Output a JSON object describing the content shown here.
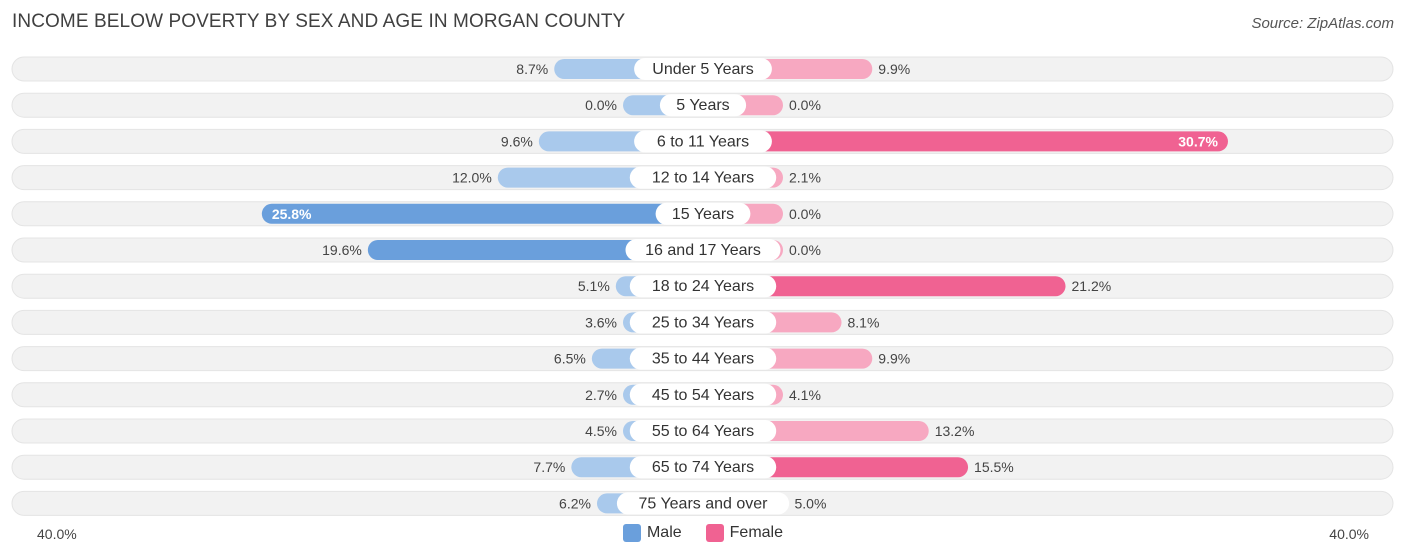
{
  "header": {
    "title": "INCOME BELOW POVERTY BY SEX AND AGE IN MORGAN COUNTY",
    "source": "Source: ZipAtlas.com"
  },
  "axis": {
    "left_label": "40.0%",
    "right_label": "40.0%"
  },
  "legend": {
    "male_label": "Male",
    "female_label": "Female"
  },
  "colors": {
    "male": "#6a9fdc",
    "male_light": "#a9c9ec",
    "female": "#f06292",
    "female_light": "#f7a8c1",
    "row_bg": "#f2f2f2"
  },
  "chart_data": {
    "type": "bar",
    "title": "INCOME BELOW POVERTY BY SEX AND AGE IN MORGAN COUNTY",
    "orientation": "horizontal-diverging",
    "xlim": [
      -40,
      40
    ],
    "categories": [
      "Under 5 Years",
      "5 Years",
      "6 to 11 Years",
      "12 to 14 Years",
      "15 Years",
      "16 and 17 Years",
      "18 to 24 Years",
      "25 to 34 Years",
      "35 to 44 Years",
      "45 to 54 Years",
      "55 to 64 Years",
      "65 to 74 Years",
      "75 Years and over"
    ],
    "series": [
      {
        "name": "Male",
        "values": [
          8.7,
          0.0,
          9.6,
          12.0,
          25.8,
          19.6,
          5.1,
          3.6,
          6.5,
          2.7,
          4.5,
          7.7,
          6.2
        ],
        "labels": [
          "8.7%",
          "0.0%",
          "9.6%",
          "12.0%",
          "25.8%",
          "19.6%",
          "5.1%",
          "3.6%",
          "6.5%",
          "2.7%",
          "4.5%",
          "7.7%",
          "6.2%"
        ]
      },
      {
        "name": "Female",
        "values": [
          9.9,
          0.0,
          30.7,
          2.1,
          0.0,
          0.0,
          21.2,
          8.1,
          9.9,
          4.1,
          13.2,
          15.5,
          5.0
        ],
        "labels": [
          "9.9%",
          "0.0%",
          "30.7%",
          "2.1%",
          "0.0%",
          "0.0%",
          "21.2%",
          "8.1%",
          "9.9%",
          "4.1%",
          "13.2%",
          "15.5%",
          "5.0%"
        ]
      }
    ],
    "legend_position": "bottom-center"
  }
}
